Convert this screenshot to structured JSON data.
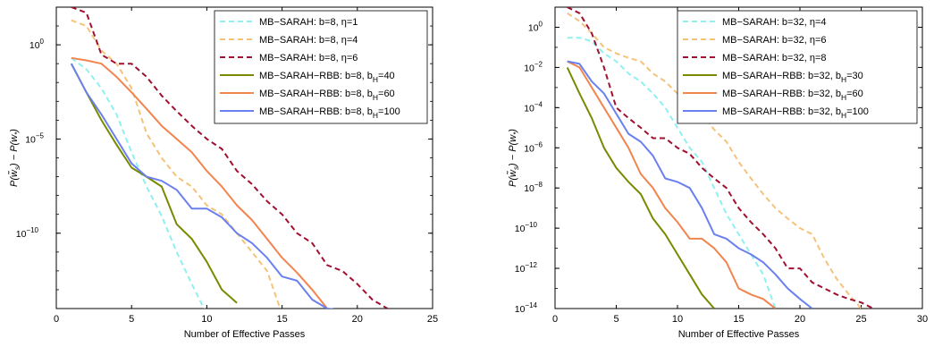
{
  "colors": {
    "cyan": "#8ff0f0",
    "light_orange": "#f5c27a",
    "dark_red": "#a01030",
    "olive": "#7a8a00",
    "orange": "#f2844e",
    "blue": "#6a80f0"
  },
  "chart_data": [
    {
      "type": "line",
      "xlabel": "Number of Effective Passes",
      "ylabel": "P(w̃s) − P(w*)",
      "y_scale": "log",
      "xlim": [
        0,
        25
      ],
      "ylim": [
        1e-14,
        100.0
      ],
      "xticks": [
        0,
        5,
        10,
        15,
        20,
        25
      ],
      "yticks": [
        {
          "value": 1,
          "label": "10",
          "exp": "0"
        },
        {
          "value": 1e-05,
          "label": "10",
          "exp": "−5"
        },
        {
          "value": 1e-10,
          "label": "10",
          "exp": "−10"
        }
      ],
      "legend_position": "top-right",
      "series": [
        {
          "name": "MB−SARAH: b=8, η=1",
          "color": "cyan",
          "dash": "dashed",
          "x": [
            1,
            2,
            3,
            4,
            5,
            6,
            7,
            8,
            9,
            10
          ],
          "y": [
            0.2,
            0.05,
            0.005,
            0.0002,
            2e-06,
            3e-08,
            8e-10,
            1e-11,
            2e-13,
            5e-15
          ]
        },
        {
          "name": "MB−SARAH: b=8, η=4",
          "color": "light_orange",
          "dash": "dashed",
          "x": [
            1,
            2,
            3,
            4,
            5,
            6,
            7,
            8,
            9,
            10,
            11,
            12,
            13,
            14,
            15
          ],
          "y": [
            20,
            10,
            0.5,
            0.1,
            0.005,
            2e-05,
            1e-06,
            1e-07,
            3e-08,
            3e-09,
            1e-09,
            1e-10,
            1e-11,
            1e-12,
            5e-15
          ]
        },
        {
          "name": "MB−SARAH: b=8, η=6",
          "color": "dark_red",
          "dash": "dashed",
          "x": [
            1,
            2,
            3,
            4,
            5,
            6,
            7,
            8,
            9,
            10,
            11,
            12,
            13,
            14,
            15,
            16,
            17,
            18,
            19,
            20,
            21,
            22
          ],
          "y": [
            100,
            50,
            0.3,
            0.1,
            0.1,
            0.02,
            0.002,
            0.0003,
            5e-05,
            1e-05,
            3e-06,
            2e-07,
            4e-08,
            5e-09,
            1e-09,
            1e-10,
            3e-11,
            2e-12,
            1e-12,
            2e-13,
            3e-14,
            1e-14
          ]
        },
        {
          "name": "MB−SARAH−RBB: b=8, bH=40",
          "color": "olive",
          "dash": "solid",
          "x": [
            1,
            2,
            3,
            4,
            5,
            6,
            7,
            8,
            9,
            10,
            11,
            12
          ],
          "y": [
            0.1,
            0.003,
            0.0001,
            5e-06,
            3e-07,
            1e-07,
            3e-08,
            3e-10,
            5e-11,
            3e-12,
            1e-13,
            2e-14
          ]
        },
        {
          "name": "MB−SARAH−RBB: b=8, bH=60",
          "color": "orange",
          "dash": "solid",
          "x": [
            1,
            2,
            3,
            4,
            5,
            6,
            7,
            8,
            9,
            10,
            11,
            12,
            13,
            14,
            15,
            16,
            17,
            18
          ],
          "y": [
            0.2,
            0.15,
            0.1,
            0.02,
            0.003,
            0.0004,
            5e-05,
            1e-05,
            2e-06,
            2e-07,
            3e-08,
            3e-09,
            5e-10,
            5e-11,
            5e-12,
            8e-13,
            1e-13,
            1e-14
          ]
        },
        {
          "name": "MB−SARAH−RBB: b=8, bH=100",
          "color": "blue",
          "dash": "solid",
          "x": [
            1,
            2,
            3,
            4,
            5,
            6,
            7,
            8,
            9,
            10,
            11,
            12,
            13,
            14,
            15,
            16,
            17,
            18,
            19
          ],
          "y": [
            0.1,
            0.003,
            0.0002,
            1e-05,
            5e-07,
            1e-07,
            6e-08,
            2e-08,
            2e-09,
            2e-09,
            7e-10,
            1e-10,
            3e-11,
            5e-12,
            5e-13,
            3e-13,
            3e-14,
            1e-14,
            8e-15
          ]
        }
      ]
    },
    {
      "type": "line",
      "xlabel": "Number of Effective Passes",
      "ylabel": "P(w̃s) − P(w*)",
      "y_scale": "log",
      "xlim": [
        0,
        30
      ],
      "ylim": [
        1e-14,
        10.0
      ],
      "xticks": [
        0,
        5,
        10,
        15,
        20,
        25,
        30
      ],
      "yticks": [
        {
          "value": 1,
          "label": "10",
          "exp": "0"
        },
        {
          "value": 0.01,
          "label": "10",
          "exp": "−2"
        },
        {
          "value": 0.0001,
          "label": "10",
          "exp": "−4"
        },
        {
          "value": 1e-06,
          "label": "10",
          "exp": "−6"
        },
        {
          "value": 1e-08,
          "label": "10",
          "exp": "−8"
        },
        {
          "value": 1e-10,
          "label": "10",
          "exp": "−10"
        },
        {
          "value": 1e-12,
          "label": "10",
          "exp": "−12"
        },
        {
          "value": 1e-14,
          "label": "10",
          "exp": "−14"
        }
      ],
      "legend_position": "top-right",
      "series": [
        {
          "name": "MB−SARAH: b=32, η=4",
          "color": "cyan",
          "dash": "dashed",
          "x": [
            1,
            2,
            3,
            4,
            5,
            6,
            7,
            8,
            9,
            10,
            11,
            12,
            13,
            14,
            15,
            16,
            17,
            18
          ],
          "y": [
            0.3,
            0.3,
            0.2,
            0.05,
            0.02,
            0.005,
            0.002,
            0.0005,
            0.0001,
            1e-05,
            1e-06,
            2e-07,
            1e-08,
            5e-10,
            5e-11,
            5e-12,
            5e-13,
            1e-14
          ]
        },
        {
          "name": "MB−SARAH: b=32, η=6",
          "color": "light_orange",
          "dash": "dashed",
          "x": [
            1,
            2,
            3,
            4,
            5,
            6,
            7,
            8,
            9,
            10,
            11,
            12,
            13,
            14,
            15,
            16,
            17,
            18,
            19,
            20,
            21,
            22,
            23,
            24,
            25
          ],
          "y": [
            5,
            2,
            0.5,
            0.1,
            0.05,
            0.03,
            0.02,
            0.005,
            0.002,
            0.0005,
            0.0001,
            5e-05,
            8e-06,
            2e-06,
            2e-07,
            3e-08,
            5e-09,
            1e-09,
            3e-10,
            1e-10,
            5e-11,
            3e-12,
            3e-13,
            5e-14,
            1e-14
          ]
        },
        {
          "name": "MB−SARAH: b=32, η=8",
          "color": "dark_red",
          "dash": "dashed",
          "x": [
            1,
            2,
            3,
            4,
            5,
            6,
            7,
            8,
            9,
            10,
            11,
            12,
            13,
            14,
            15,
            16,
            17,
            18,
            19,
            20,
            21,
            22,
            23,
            24,
            25,
            26
          ],
          "y": [
            10,
            5,
            0.5,
            0.01,
            0.0001,
            3e-05,
            1e-05,
            3e-06,
            3e-06,
            1e-06,
            5e-07,
            1e-07,
            3e-08,
            1e-08,
            1e-09,
            2e-10,
            5e-11,
            1e-11,
            1e-12,
            1e-12,
            2e-13,
            1e-13,
            5e-14,
            3e-14,
            2e-14,
            1e-14
          ]
        },
        {
          "name": "MB−SARAH−RBB: b=32, bH=30",
          "color": "olive",
          "dash": "solid",
          "x": [
            1,
            2,
            3,
            4,
            5,
            6,
            7,
            8,
            9,
            10,
            11,
            12,
            13
          ],
          "y": [
            0.01,
            0.0005,
            3e-05,
            1e-06,
            1e-07,
            2e-08,
            5e-09,
            3e-10,
            5e-11,
            5e-12,
            5e-13,
            5e-14,
            1e-14
          ]
        },
        {
          "name": "MB−SARAH−RBB: b=32, bH=60",
          "color": "orange",
          "dash": "solid",
          "x": [
            1,
            2,
            3,
            4,
            5,
            6,
            7,
            8,
            9,
            10,
            11,
            12,
            13,
            14,
            15,
            16,
            17,
            18
          ],
          "y": [
            0.02,
            0.01,
            0.001,
            0.0001,
            1e-05,
            1e-06,
            5e-08,
            1e-08,
            1e-09,
            2e-10,
            3e-11,
            3e-11,
            1e-11,
            2e-12,
            1e-13,
            5e-14,
            3e-14,
            1e-14
          ]
        },
        {
          "name": "MB−SARAH−RBB: b=32, bH=100",
          "color": "blue",
          "dash": "solid",
          "x": [
            1,
            2,
            3,
            4,
            5,
            6,
            7,
            8,
            9,
            10,
            11,
            12,
            13,
            14,
            15,
            16,
            17,
            18,
            19,
            20,
            21
          ],
          "y": [
            0.02,
            0.015,
            0.002,
            0.0005,
            5e-05,
            5e-06,
            2e-06,
            4e-07,
            3e-08,
            2e-08,
            1e-08,
            1e-09,
            5e-11,
            3e-11,
            1e-11,
            5e-12,
            2e-12,
            5e-13,
            1e-13,
            3e-14,
            1e-14
          ]
        }
      ]
    }
  ]
}
